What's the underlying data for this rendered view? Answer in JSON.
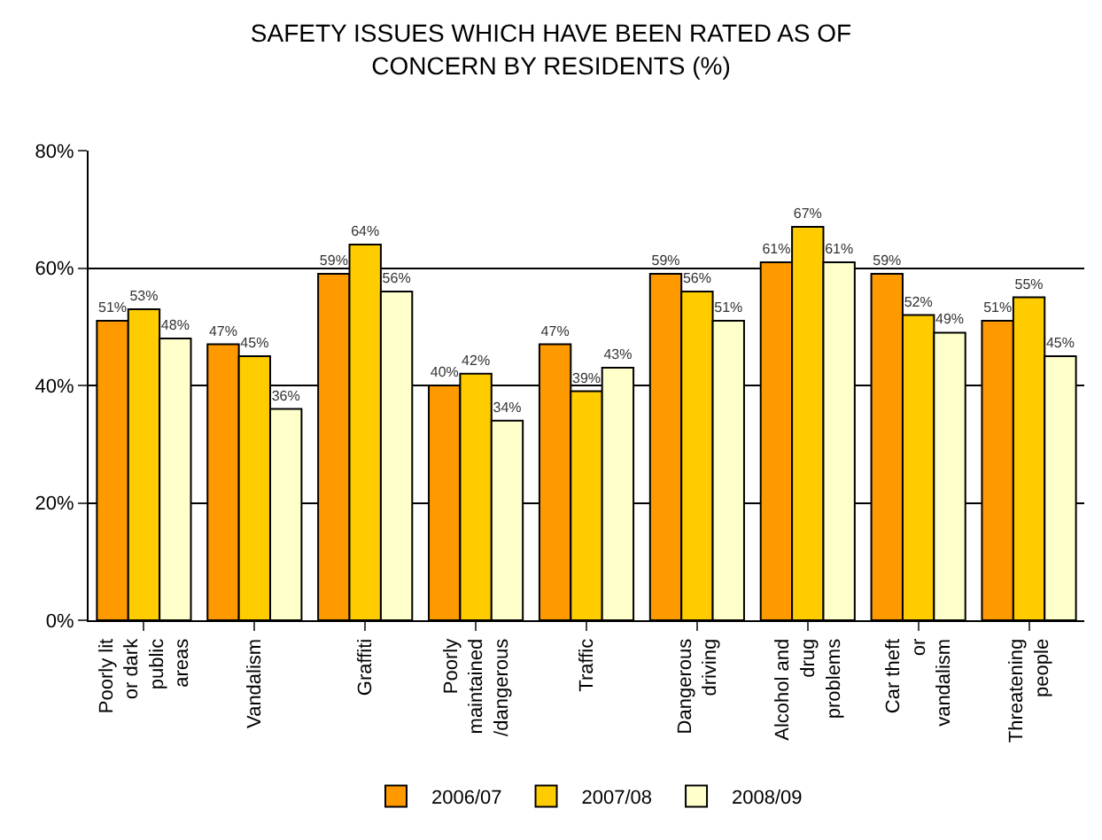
{
  "chart_data": {
    "type": "bar",
    "title": "SAFETY ISSUES WHICH HAVE BEEN RATED AS OF CONCERN BY RESIDENTS (%)",
    "categories": [
      "Poorly lit or dark public areas",
      "Vandalism",
      "Graffiti",
      "Poorly maintained /dangerous",
      "Traffic",
      "Dangerous driving",
      "Alcohol and drug problems",
      "Car theft or vandalism",
      "Threatening people"
    ],
    "series": [
      {
        "name": "2006/07",
        "color": "#ff9900",
        "values": [
          51,
          47,
          59,
          40,
          47,
          59,
          61,
          59,
          51
        ],
        "value_labels": [
          "51%",
          "47%",
          "59%",
          "40%",
          "47%",
          "59%",
          "61%",
          "59%",
          "51%"
        ]
      },
      {
        "name": "2007/08",
        "color": "#ffcc00",
        "values": [
          53,
          45,
          64,
          42,
          39,
          56,
          67,
          52,
          55
        ],
        "value_labels": [
          "53%",
          "45%",
          "64%",
          "42%",
          "39%",
          "56%",
          "67%",
          "52%",
          "55%"
        ]
      },
      {
        "name": "2008/09",
        "color": "#ffffcc",
        "values": [
          48,
          36,
          56,
          34,
          43,
          51,
          61,
          49,
          45
        ],
        "value_labels": [
          "48%",
          "36%",
          "56%",
          "34%",
          "43%",
          "51%",
          "61%",
          "49%",
          "45%"
        ]
      }
    ],
    "ylim": [
      0,
      80
    ],
    "yticks": [
      {
        "value": 0,
        "label": "0%"
      },
      {
        "value": 20,
        "label": "20%"
      },
      {
        "value": 40,
        "label": "40%"
      },
      {
        "value": 60,
        "label": "60%"
      },
      {
        "value": 80,
        "label": "80%"
      }
    ],
    "grid": "y",
    "legend": "bottom"
  }
}
